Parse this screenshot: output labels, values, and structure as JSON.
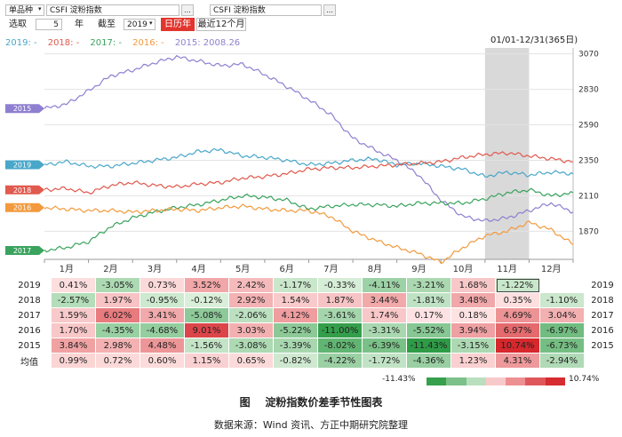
{
  "toolbar": {
    "variety_select": "单品种",
    "contract_a": "CSFI 淀粉指数",
    "contract_b": "CSFI 淀粉指数",
    "select_label": "选取",
    "years_value": "5",
    "years_unit": "年",
    "cutoff_label": "截至",
    "cutoff_value": "2019",
    "calendar_year_btn": "日历年",
    "recent12_btn": "最近12个月",
    "more_btn": "..."
  },
  "legend": [
    {
      "label": "2019: -",
      "color": "#49a7c9"
    },
    {
      "label": "2018: -",
      "color": "#e05a4e"
    },
    {
      "label": "2017: -",
      "color": "#3aa35e"
    },
    {
      "label": "2016: -",
      "color": "#f29a3d"
    },
    {
      "label": "2015: 2008.26",
      "color": "#8f7fd0"
    }
  ],
  "range_text": "01/01-12/31(365日)",
  "chart_data": {
    "type": "line",
    "title": "淀粉指数价差季节性图表",
    "x_categories": [
      "1月",
      "2月",
      "3月",
      "4月",
      "5月",
      "6月",
      "7月",
      "8月",
      "9月",
      "10月",
      "11月",
      "12月"
    ],
    "yticks": [
      1870,
      2110,
      2350,
      2590,
      2830,
      3070
    ],
    "ylim": [
      1680,
      3110
    ],
    "highlight_month": "11月",
    "series": [
      {
        "name": "2015",
        "color": "#8f7fd0",
        "x": [
          0,
          0.5,
          1,
          1.5,
          2,
          2.5,
          3,
          3.5,
          4,
          4.5,
          5,
          5.5,
          6,
          6.5,
          7,
          7.5,
          8,
          8.5,
          9,
          9.5,
          10,
          10.5,
          11,
          11.5,
          12
        ],
        "y": [
          2700,
          2730,
          2820,
          2920,
          2960,
          3010,
          3050,
          3020,
          2990,
          3000,
          2930,
          2850,
          2760,
          2660,
          2500,
          2420,
          2350,
          2250,
          2080,
          1970,
          1940,
          1960,
          2010,
          2060,
          2000
        ]
      },
      {
        "name": "2019",
        "color": "#49a7c9",
        "x": [
          0,
          0.5,
          1,
          1.5,
          2,
          2.5,
          3,
          3.5,
          4,
          4.5,
          5,
          5.5,
          6,
          6.5,
          7,
          7.5,
          8,
          8.5,
          9,
          9.5,
          10,
          10.5,
          11,
          11.5,
          12
        ],
        "y": [
          2320,
          2340,
          2310,
          2310,
          2330,
          2350,
          2370,
          2410,
          2420,
          2380,
          2370,
          2350,
          2320,
          2330,
          2350,
          2360,
          2320,
          2330,
          2310,
          2290,
          2240,
          2270,
          2250,
          2270,
          2260
        ]
      },
      {
        "name": "2018",
        "color": "#e05a4e",
        "x": [
          0,
          0.5,
          1,
          1.5,
          2,
          2.5,
          3,
          3.5,
          4,
          4.5,
          5,
          5.5,
          6,
          6.5,
          7,
          7.5,
          8,
          8.5,
          9,
          9.5,
          10,
          10.5,
          11,
          11.5,
          12
        ],
        "y": [
          2150,
          2160,
          2130,
          2180,
          2200,
          2180,
          2170,
          2190,
          2200,
          2230,
          2240,
          2260,
          2290,
          2300,
          2300,
          2310,
          2320,
          2330,
          2340,
          2370,
          2390,
          2400,
          2380,
          2360,
          2340
        ]
      },
      {
        "name": "2017",
        "color": "#3aa35e",
        "x": [
          0,
          0.5,
          1,
          1.5,
          2,
          2.5,
          3,
          3.5,
          4,
          4.5,
          5,
          5.5,
          6,
          6.5,
          7,
          7.5,
          8,
          8.5,
          9,
          9.5,
          10,
          10.5,
          11,
          11.5,
          12
        ],
        "y": [
          1740,
          1760,
          1800,
          1900,
          1960,
          2000,
          2030,
          2050,
          2080,
          2110,
          2100,
          2080,
          2020,
          2040,
          2050,
          2050,
          2040,
          2060,
          2060,
          2060,
          2090,
          2130,
          2150,
          2110,
          2130
        ]
      },
      {
        "name": "2016",
        "color": "#f29a3d",
        "x": [
          0,
          0.5,
          1,
          1.5,
          2,
          2.5,
          3,
          3.5,
          4,
          4.5,
          5,
          5.5,
          6,
          6.5,
          7,
          7.5,
          8,
          8.5,
          9,
          9.5,
          10,
          10.5,
          11,
          11.5,
          12
        ],
        "y": [
          2030,
          2020,
          2010,
          2010,
          2000,
          2010,
          2020,
          2010,
          2030,
          2040,
          2020,
          2010,
          2010,
          1970,
          1870,
          1810,
          1760,
          1720,
          1660,
          1760,
          1840,
          1870,
          1930,
          1880,
          1780
        ]
      }
    ],
    "table": {
      "rows": [
        {
          "year": "2019",
          "values": [
            "0.41%",
            "-3.05%",
            "0.73%",
            "3.52%",
            "2.42%",
            "-1.17%",
            "-0.33%",
            "-4.11%",
            "-3.21%",
            "1.68%",
            "-1.22%",
            ""
          ]
        },
        {
          "year": "2018",
          "values": [
            "-2.57%",
            "1.97%",
            "-0.95%",
            "-0.12%",
            "2.92%",
            "1.54%",
            "1.87%",
            "3.44%",
            "-1.81%",
            "3.48%",
            "0.35%",
            "-1.10%"
          ]
        },
        {
          "year": "2017",
          "values": [
            "1.59%",
            "6.02%",
            "3.41%",
            "-5.08%",
            "-2.06%",
            "4.12%",
            "-3.61%",
            "1.74%",
            "0.17%",
            "0.18%",
            "4.69%",
            "3.04%"
          ]
        },
        {
          "year": "2016",
          "values": [
            "1.70%",
            "-4.35%",
            "-4.68%",
            "9.01%",
            "3.03%",
            "-5.22%",
            "-11.00%",
            "-3.31%",
            "-5.52%",
            "3.94%",
            "6.97%",
            "-6.97%"
          ]
        },
        {
          "year": "2015",
          "values": [
            "3.84%",
            "2.98%",
            "4.48%",
            "-1.56%",
            "-3.08%",
            "-3.39%",
            "-8.02%",
            "-6.39%",
            "-11.43%",
            "-3.15%",
            "10.74%",
            "-6.73%"
          ]
        },
        {
          "year": "均值",
          "values": [
            "0.99%",
            "0.72%",
            "0.60%",
            "1.15%",
            "0.65%",
            "-0.82%",
            "-4.22%",
            "-1.72%",
            "-4.36%",
            "1.23%",
            "4.31%",
            "-2.94%"
          ]
        }
      ],
      "right_labels": [
        "2019",
        "2018",
        "2017",
        "2016",
        "2015"
      ]
    },
    "color_scale": {
      "min_label": "-11.43%",
      "max_label": "10.74%",
      "min": -11.43,
      "max": 10.74
    }
  },
  "caption": {
    "figure_label": "图",
    "title": "淀粉指数价差季节性图表",
    "source": "数据来源：Wind 资讯、方正中期研究院整理"
  }
}
